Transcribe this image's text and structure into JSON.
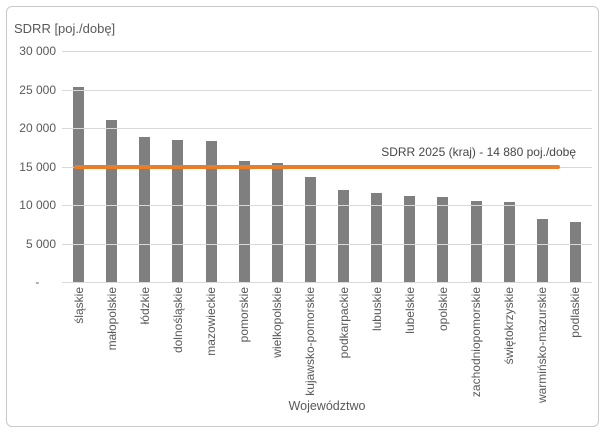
{
  "chart_data": {
    "type": "bar",
    "title": "",
    "y_axis_title": "SDRR [poj./dobę]",
    "x_axis_title": "Województwo",
    "categories": [
      "śląskie",
      "małopolskie",
      "łódzkie",
      "dolnośląskie",
      "mazowieckie",
      "pomorskie",
      "wielkopolskie",
      "kujawsko-pomorskie",
      "podkarpackie",
      "lubuskie",
      "lubelskie",
      "opolskie",
      "zachodniopomorskie",
      "świętokrzyskie",
      "warmińsko-mazurskie",
      "podlaskie"
    ],
    "values": [
      25300,
      21000,
      18800,
      18400,
      18300,
      15700,
      15400,
      13700,
      12000,
      11600,
      11200,
      11000,
      10500,
      10400,
      8200,
      7800
    ],
    "ylim": [
      0,
      30000
    ],
    "y_tick_step": 5000,
    "y_tick_labels": [
      "-     ",
      "5 000",
      "10 000",
      "15 000",
      "20 000",
      "25 000",
      "30 000"
    ],
    "grid": "horizontal",
    "legend": "none",
    "series_color": "#7f7f7f",
    "gridline_color": "#d9d9d9",
    "reference_line": {
      "value": 14880,
      "label": "SDRR 2025 (kraj) - 14 880 poj./dobę",
      "color": "#e87d2a"
    }
  }
}
